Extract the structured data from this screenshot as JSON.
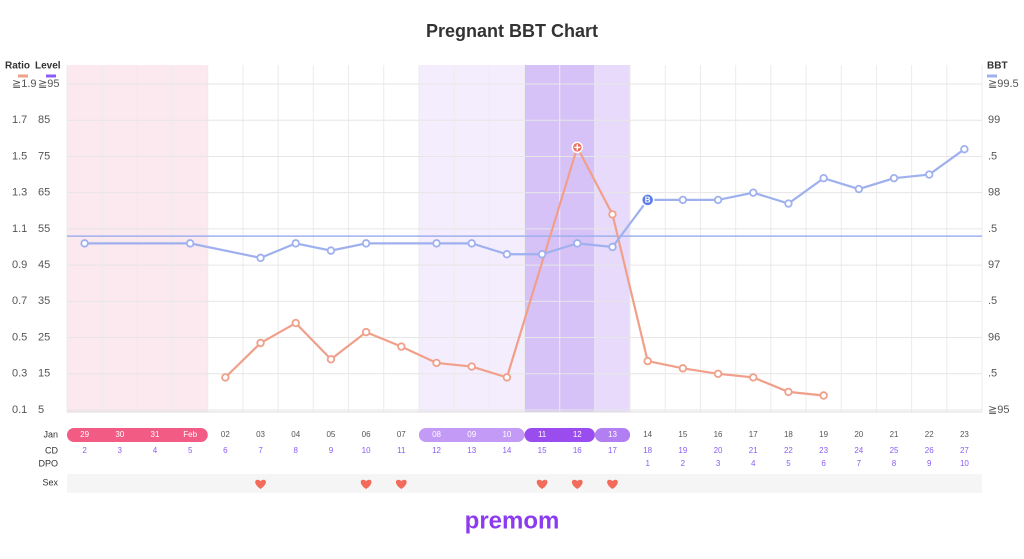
{
  "chart_data": {
    "type": "line",
    "title": "Pregnant BBT Chart",
    "axis_titles": {
      "ratio": "Ratio",
      "level": "Level",
      "bbt": "BBT"
    },
    "axis_colors": {
      "ratio": "#f0a08a",
      "level": "#8b5cf6",
      "bbt": "#9fb0ee"
    },
    "xlim": [
      1.5,
      27.5
    ],
    "ylim": [
      0.1,
      1.9
    ],
    "yticks": [
      0.1,
      0.3,
      0.5,
      0.7,
      0.9,
      1.1,
      1.3,
      1.5,
      1.7,
      {
        "value": 1.9,
        "label": "≧1.9"
      }
    ],
    "y2lim": [
      5,
      95
    ],
    "y2ticks": [
      5,
      15,
      25,
      35,
      45,
      55,
      65,
      75,
      85,
      {
        "value": 95,
        "label": "≧95"
      }
    ],
    "y3lim": [
      95,
      99.5
    ],
    "y3ticks": [
      {
        "value": 95,
        "label": "≧95"
      },
      {
        "value": 95.5,
        "label": ".5"
      },
      96,
      {
        "value": 96.5,
        "label": ".5"
      },
      97,
      {
        "value": 97.5,
        "label": ".5"
      },
      98,
      {
        "value": 98.5,
        "label": ".5"
      },
      99,
      {
        "value": 99.5,
        "label": "≧99.5"
      }
    ],
    "grid": true,
    "month_label": "Jan",
    "dates": [
      "29",
      "30",
      "31",
      "Feb",
      "02",
      "03",
      "04",
      "05",
      "06",
      "07",
      "08",
      "09",
      "10",
      "11",
      "12",
      "13",
      "14",
      "15",
      "16",
      "17",
      "18",
      "19",
      "20",
      "21",
      "22",
      "23"
    ],
    "cd_label": "CD",
    "cd": [
      2,
      3,
      4,
      5,
      6,
      7,
      8,
      9,
      10,
      11,
      12,
      13,
      14,
      15,
      16,
      17,
      18,
      19,
      20,
      21,
      22,
      23,
      24,
      25,
      26,
      27
    ],
    "dpo_label": "DPO",
    "dpo": [
      null,
      null,
      null,
      null,
      null,
      null,
      null,
      null,
      null,
      null,
      null,
      null,
      null,
      null,
      null,
      null,
      1,
      2,
      3,
      4,
      5,
      6,
      7,
      8,
      9,
      10
    ],
    "sex_label": "Sex",
    "sex": [
      7,
      10,
      11,
      15,
      16,
      17
    ],
    "bands": [
      {
        "x": [
          2,
          5
        ],
        "fill": "#fce8ef",
        "pill": "#f25c84"
      },
      {
        "x": [
          12,
          14
        ],
        "fill": "#f4edfd",
        "pill": "#c39af6"
      },
      {
        "x": [
          15,
          16
        ],
        "fill": "#d7c2f8",
        "pill": "#9a4cef"
      },
      {
        "x": [
          17,
          17
        ],
        "fill": "#e7dafb",
        "pill": "#b27ff3"
      }
    ],
    "coverline": 97.4,
    "series": [
      {
        "axis": "y",
        "color": "#f0a08a",
        "x": [
          6,
          7,
          8,
          9,
          10,
          11,
          12,
          13,
          14,
          16,
          17,
          18,
          19,
          20,
          21,
          22,
          23
        ],
        "values": [
          0.28,
          0.47,
          0.58,
          0.38,
          0.53,
          0.45,
          0.36,
          0.34,
          0.28,
          1.55,
          1.18,
          0.37,
          0.33,
          0.3,
          0.28,
          0.2,
          0.18
        ]
      },
      {
        "axis": "y3",
        "color": "#9fb0ee",
        "x": [
          2,
          5,
          7,
          8,
          9,
          10,
          12,
          13,
          14,
          15,
          16,
          17,
          18,
          19,
          20,
          21,
          22,
          23,
          24,
          25,
          26,
          27
        ],
        "values": [
          97.3,
          97.3,
          97.1,
          97.3,
          97.2,
          97.3,
          97.3,
          97.3,
          97.15,
          97.15,
          97.3,
          97.25,
          97.9,
          97.9,
          97.9,
          98.0,
          97.85,
          98.2,
          98.05,
          98.2,
          98.25,
          98.6
        ]
      }
    ],
    "markers": [
      {
        "series": 0,
        "x": 16,
        "symbol": "plus"
      },
      {
        "series": 1,
        "x": 18,
        "label": "B"
      }
    ],
    "logo": "premom"
  }
}
